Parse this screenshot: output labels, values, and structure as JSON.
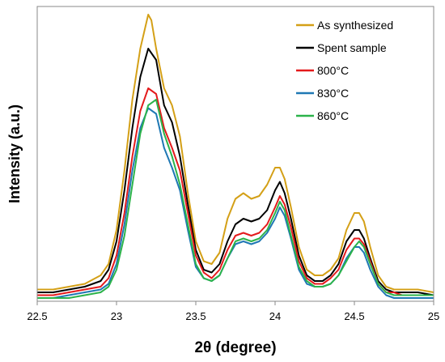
{
  "chart_data": {
    "type": "line",
    "title": "",
    "xlabel": "2θ (degree)",
    "ylabel": "Intensity (a.u.)",
    "xlim": [
      22.5,
      25
    ],
    "ylim": [
      0,
      1
    ],
    "xticks": [
      22.5,
      23,
      23.5,
      24,
      24.5,
      25
    ],
    "xtick_labels": [
      "22.5",
      "23",
      "23.5",
      "24",
      "24.5",
      "25"
    ],
    "yticks_visible": false,
    "grid": false,
    "legend_position": "top-right",
    "series": [
      {
        "name": "As synthesized",
        "color": "#D4A017",
        "x": [
          22.5,
          22.6,
          22.7,
          22.8,
          22.9,
          22.95,
          23.0,
          23.05,
          23.1,
          23.15,
          23.2,
          23.22,
          23.25,
          23.3,
          23.35,
          23.4,
          23.45,
          23.5,
          23.55,
          23.6,
          23.65,
          23.7,
          23.75,
          23.8,
          23.85,
          23.9,
          23.95,
          24.0,
          24.03,
          24.06,
          24.1,
          24.15,
          24.2,
          24.25,
          24.3,
          24.35,
          24.4,
          24.45,
          24.5,
          24.53,
          24.56,
          24.6,
          24.65,
          24.7,
          24.75,
          24.8,
          24.9,
          25.0
        ],
        "y": [
          0.03,
          0.03,
          0.04,
          0.05,
          0.08,
          0.12,
          0.24,
          0.45,
          0.7,
          0.88,
          1.0,
          0.98,
          0.88,
          0.74,
          0.68,
          0.57,
          0.37,
          0.2,
          0.13,
          0.12,
          0.16,
          0.28,
          0.35,
          0.37,
          0.35,
          0.36,
          0.4,
          0.46,
          0.46,
          0.42,
          0.32,
          0.18,
          0.1,
          0.08,
          0.08,
          0.1,
          0.14,
          0.24,
          0.3,
          0.3,
          0.27,
          0.18,
          0.08,
          0.04,
          0.03,
          0.03,
          0.03,
          0.02
        ]
      },
      {
        "name": "Spent sample",
        "color": "#000000",
        "x": [
          22.5,
          22.6,
          22.7,
          22.8,
          22.9,
          22.95,
          23.0,
          23.05,
          23.1,
          23.15,
          23.2,
          23.25,
          23.3,
          23.35,
          23.4,
          23.45,
          23.5,
          23.55,
          23.6,
          23.65,
          23.7,
          23.75,
          23.8,
          23.85,
          23.9,
          23.95,
          24.0,
          24.03,
          24.06,
          24.1,
          24.15,
          24.2,
          24.25,
          24.3,
          24.35,
          24.4,
          24.45,
          24.5,
          24.53,
          24.56,
          24.6,
          24.65,
          24.7,
          24.75,
          24.8,
          24.9,
          25.0
        ],
        "y": [
          0.02,
          0.02,
          0.03,
          0.04,
          0.06,
          0.1,
          0.2,
          0.38,
          0.6,
          0.78,
          0.88,
          0.84,
          0.68,
          0.62,
          0.5,
          0.33,
          0.17,
          0.1,
          0.09,
          0.12,
          0.2,
          0.26,
          0.28,
          0.27,
          0.28,
          0.31,
          0.38,
          0.41,
          0.37,
          0.28,
          0.15,
          0.08,
          0.06,
          0.06,
          0.08,
          0.12,
          0.2,
          0.24,
          0.24,
          0.21,
          0.14,
          0.06,
          0.03,
          0.02,
          0.02,
          0.02,
          0.01
        ]
      },
      {
        "name": "800°C",
        "color": "#E41A1C",
        "x": [
          22.5,
          22.6,
          22.7,
          22.8,
          22.9,
          22.95,
          23.0,
          23.05,
          23.1,
          23.15,
          23.2,
          23.25,
          23.3,
          23.35,
          23.4,
          23.45,
          23.5,
          23.55,
          23.6,
          23.65,
          23.7,
          23.75,
          23.8,
          23.85,
          23.9,
          23.95,
          24.0,
          24.03,
          24.06,
          24.1,
          24.15,
          24.2,
          24.25,
          24.3,
          24.35,
          24.4,
          24.45,
          24.5,
          24.53,
          24.56,
          24.6,
          24.65,
          24.7,
          24.75,
          24.8,
          24.9,
          25.0
        ],
        "y": [
          0.01,
          0.01,
          0.02,
          0.03,
          0.04,
          0.07,
          0.15,
          0.3,
          0.5,
          0.66,
          0.74,
          0.72,
          0.6,
          0.53,
          0.45,
          0.3,
          0.15,
          0.09,
          0.07,
          0.1,
          0.17,
          0.22,
          0.23,
          0.22,
          0.23,
          0.26,
          0.32,
          0.36,
          0.33,
          0.25,
          0.13,
          0.07,
          0.05,
          0.05,
          0.07,
          0.1,
          0.17,
          0.21,
          0.21,
          0.19,
          0.13,
          0.05,
          0.02,
          0.02,
          0.01,
          0.01,
          0.01
        ]
      },
      {
        "name": "830°C",
        "color": "#1F78B4",
        "x": [
          22.5,
          22.6,
          22.7,
          22.8,
          22.9,
          22.95,
          23.0,
          23.05,
          23.1,
          23.15,
          23.2,
          23.25,
          23.3,
          23.35,
          23.4,
          23.45,
          23.5,
          23.55,
          23.6,
          23.65,
          23.7,
          23.75,
          23.8,
          23.85,
          23.9,
          23.95,
          24.0,
          24.03,
          24.06,
          24.1,
          24.15,
          24.2,
          24.25,
          24.3,
          24.35,
          24.4,
          24.45,
          24.5,
          24.53,
          24.56,
          24.6,
          24.65,
          24.7,
          24.75,
          24.8,
          24.9,
          25.0
        ],
        "y": [
          0.0,
          0.0,
          0.01,
          0.02,
          0.03,
          0.05,
          0.12,
          0.26,
          0.45,
          0.6,
          0.67,
          0.65,
          0.53,
          0.46,
          0.38,
          0.24,
          0.11,
          0.07,
          0.06,
          0.08,
          0.14,
          0.19,
          0.2,
          0.19,
          0.2,
          0.23,
          0.28,
          0.32,
          0.29,
          0.21,
          0.1,
          0.05,
          0.04,
          0.04,
          0.05,
          0.08,
          0.14,
          0.18,
          0.18,
          0.16,
          0.1,
          0.04,
          0.01,
          0.0,
          0.0,
          0.0,
          0.0
        ]
      },
      {
        "name": "860°C",
        "color": "#2CB34A",
        "x": [
          22.5,
          22.6,
          22.7,
          22.8,
          22.9,
          22.95,
          23.0,
          23.05,
          23.1,
          23.15,
          23.2,
          23.25,
          23.3,
          23.35,
          23.4,
          23.45,
          23.5,
          23.55,
          23.6,
          23.65,
          23.7,
          23.75,
          23.8,
          23.85,
          23.9,
          23.95,
          24.0,
          24.03,
          24.06,
          24.1,
          24.15,
          24.2,
          24.25,
          24.3,
          24.35,
          24.4,
          24.45,
          24.5,
          24.53,
          24.56,
          24.6,
          24.65,
          24.7,
          24.75,
          24.8,
          24.9,
          25.0
        ],
        "y": [
          0.0,
          0.0,
          0.0,
          0.01,
          0.02,
          0.04,
          0.1,
          0.22,
          0.4,
          0.58,
          0.68,
          0.7,
          0.58,
          0.5,
          0.4,
          0.26,
          0.12,
          0.07,
          0.06,
          0.08,
          0.14,
          0.2,
          0.21,
          0.2,
          0.21,
          0.24,
          0.3,
          0.34,
          0.31,
          0.22,
          0.11,
          0.06,
          0.04,
          0.04,
          0.05,
          0.08,
          0.13,
          0.18,
          0.2,
          0.18,
          0.12,
          0.05,
          0.02,
          0.01,
          0.01,
          0.01,
          0.01
        ]
      }
    ]
  }
}
